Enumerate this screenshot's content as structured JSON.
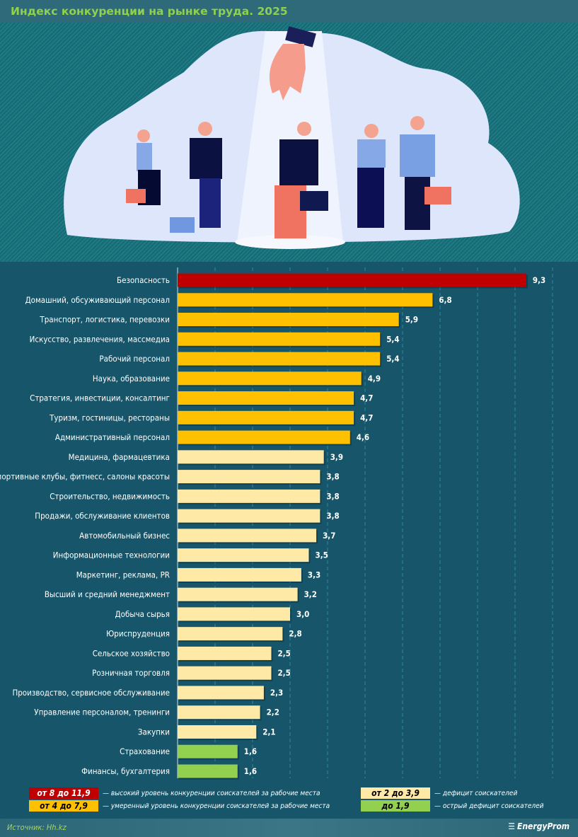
{
  "title": "Индекс конкуренции на рынке труда. 2025",
  "colors": {
    "high": "#c00000",
    "moderate": "#ffc000",
    "deficit": "#ffe9a6",
    "acute": "#92d050"
  },
  "chart_data": {
    "type": "bar",
    "orientation": "horizontal",
    "title": "Индекс конкуренции на рынке труда. 2025",
    "xlim": [
      0,
      10
    ],
    "grid": true,
    "categories": [
      "Безопасность",
      "Домашний, обсуживающий персонал",
      "Транспорт, логистика, перевозки",
      "Искусство, развлечения, массмедиа",
      "Рабочий персонал",
      "Наука, образование",
      "Стратегия, инвестиции, консалтинг",
      "Туризм, гостиницы, рестораны",
      "Административный персонал",
      "Медицина, фармацевтика",
      "Спортивные клубы, фитнесс, салоны красоты",
      "Строительство, недвижимость",
      "Продажи, обслуживание клиентов",
      "Автомобильный бизнес",
      "Информационные технологии",
      "Маркетинг, реклама, PR",
      "Высший и средний менеджмент",
      "Добыча сырья",
      "Юриспруденция",
      "Сельское хозяйство",
      "Розничная торговля",
      "Производство, сервисное обслуживание",
      "Управление персоналом, тренинги",
      "Закупки",
      "Страхование",
      "Финансы, бухгалтерия"
    ],
    "values": [
      9.3,
      6.8,
      5.9,
      5.4,
      5.4,
      4.9,
      4.7,
      4.7,
      4.6,
      3.9,
      3.8,
      3.8,
      3.8,
      3.7,
      3.5,
      3.3,
      3.2,
      3.0,
      2.8,
      2.5,
      2.5,
      2.3,
      2.2,
      2.1,
      1.6,
      1.6
    ],
    "value_labels": [
      "9,3",
      "6,8",
      "5,9",
      "5,4",
      "5,4",
      "4,9",
      "4,7",
      "4,7",
      "4,6",
      "3,9",
      "3,8",
      "3,8",
      "3,8",
      "3,7",
      "3,5",
      "3,3",
      "3,2",
      "3,0",
      "2,8",
      "2,5",
      "2,5",
      "2,3",
      "2,2",
      "2,1",
      "1,6",
      "1,6"
    ]
  },
  "legend": [
    {
      "range": "от 8 до 11,9",
      "desc": "— высокий уровень конкуренции соискателей за рабочие места",
      "color": "#c00000",
      "text": "#ffffff"
    },
    {
      "range": "от 4 до 7,9",
      "desc": "— умеренный уровень конкуренции соискателей за рабочие места",
      "color": "#ffc000",
      "text": "#000000"
    },
    {
      "range": "от 2 до 3,9",
      "desc": "— дефицит соискателей",
      "color": "#ffe9a6",
      "text": "#000000"
    },
    {
      "range": "до 1,9",
      "desc": "— острый дефицит соискателей",
      "color": "#92d050",
      "text": "#000000"
    }
  ],
  "footer": {
    "source": "Источник: Hh.kz",
    "logo": "EnergyProm"
  }
}
